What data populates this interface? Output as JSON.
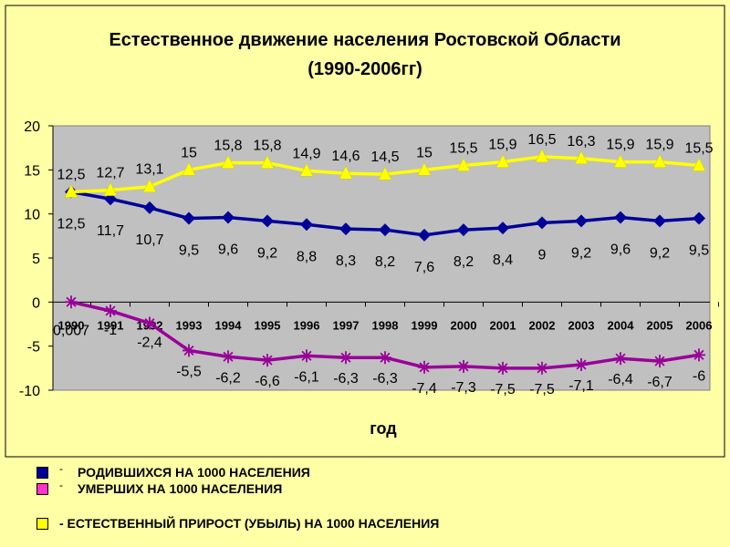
{
  "chart_data": {
    "type": "line",
    "title": "Естественное движение населения Ростовской Области",
    "subtitle": "(1990-2006гг)",
    "xlabel": "год",
    "ylabel": "",
    "ylim": [
      -10,
      20
    ],
    "yticks": [
      "20",
      "15",
      "10",
      "5",
      "0",
      "-5",
      "-10"
    ],
    "categories": [
      "1990",
      "1991",
      "1992",
      "1993",
      "1994",
      "1995",
      "1996",
      "1997",
      "1998",
      "1999",
      "2000",
      "2001",
      "2002",
      "2003",
      "2004",
      "2005",
      "2006"
    ],
    "series": [
      {
        "name": "РОДИВШИХСЯ НА 1000 НАСЕЛЕНИЯ",
        "color": "#000099",
        "marker": "diamond",
        "values": [
          12.5,
          11.7,
          10.7,
          9.5,
          9.6,
          9.2,
          8.8,
          8.3,
          8.2,
          7.6,
          8.2,
          8.4,
          9.0,
          9.2,
          9.6,
          9.2,
          9.5
        ],
        "labels": [
          "12,5",
          "11,7",
          "10,7",
          "9,5",
          "9,6",
          "9,2",
          "8,8",
          "8,3",
          "8,2",
          "7,6",
          "8,2",
          "8,4",
          "9",
          "9,2",
          "9,6",
          "9,2",
          "9,5"
        ]
      },
      {
        "name": "УМЕРШИХ НА 1000 НАСЕЛЕНИЯ",
        "color": "#990099",
        "marker": "star",
        "values": [
          0.007,
          -1,
          -2.4,
          -5.5,
          -6.2,
          -6.6,
          -6.1,
          -6.3,
          -6.3,
          -7.4,
          -7.3,
          -7.5,
          -7.5,
          -7.1,
          -6.4,
          -6.7,
          -6
        ],
        "labels": [
          "0,007",
          "-1",
          "-2,4",
          "-5,5",
          "-6,2",
          "-6,6",
          "-6,1",
          "-6,3",
          "-6,3",
          "-7,4",
          "-7,3",
          "-7,5",
          "-7,5",
          "-7,1",
          "-6,4",
          "-6,7",
          "-6"
        ]
      },
      {
        "name": "- ЕСТЕСТВЕННЫЙ ПРИРОСТ (УБЫЛЬ) НА 1000 НАСЕЛЕНИЯ",
        "color": "#FFFF00",
        "marker": "triangle",
        "values": [
          12.5,
          12.7,
          13.1,
          15,
          15.8,
          15.8,
          14.9,
          14.6,
          14.5,
          15,
          15.5,
          15.9,
          16.5,
          16.3,
          15.9,
          15.9,
          15.5
        ],
        "labels": [
          "12,5",
          "12,7",
          "13,1",
          "15",
          "15,8",
          "15,8",
          "14,9",
          "14,6",
          "14,5",
          "15",
          "15,5",
          "15,9",
          "16,5",
          "16,3",
          "15,9",
          "15,9",
          "15,5"
        ]
      }
    ],
    "grid": false,
    "legend_position": "bottom-left"
  },
  "legend": {
    "dash": "-",
    "colors": {
      "birth": "#000099",
      "death": "#FF33CC",
      "growth": "#FFFF00"
    }
  }
}
